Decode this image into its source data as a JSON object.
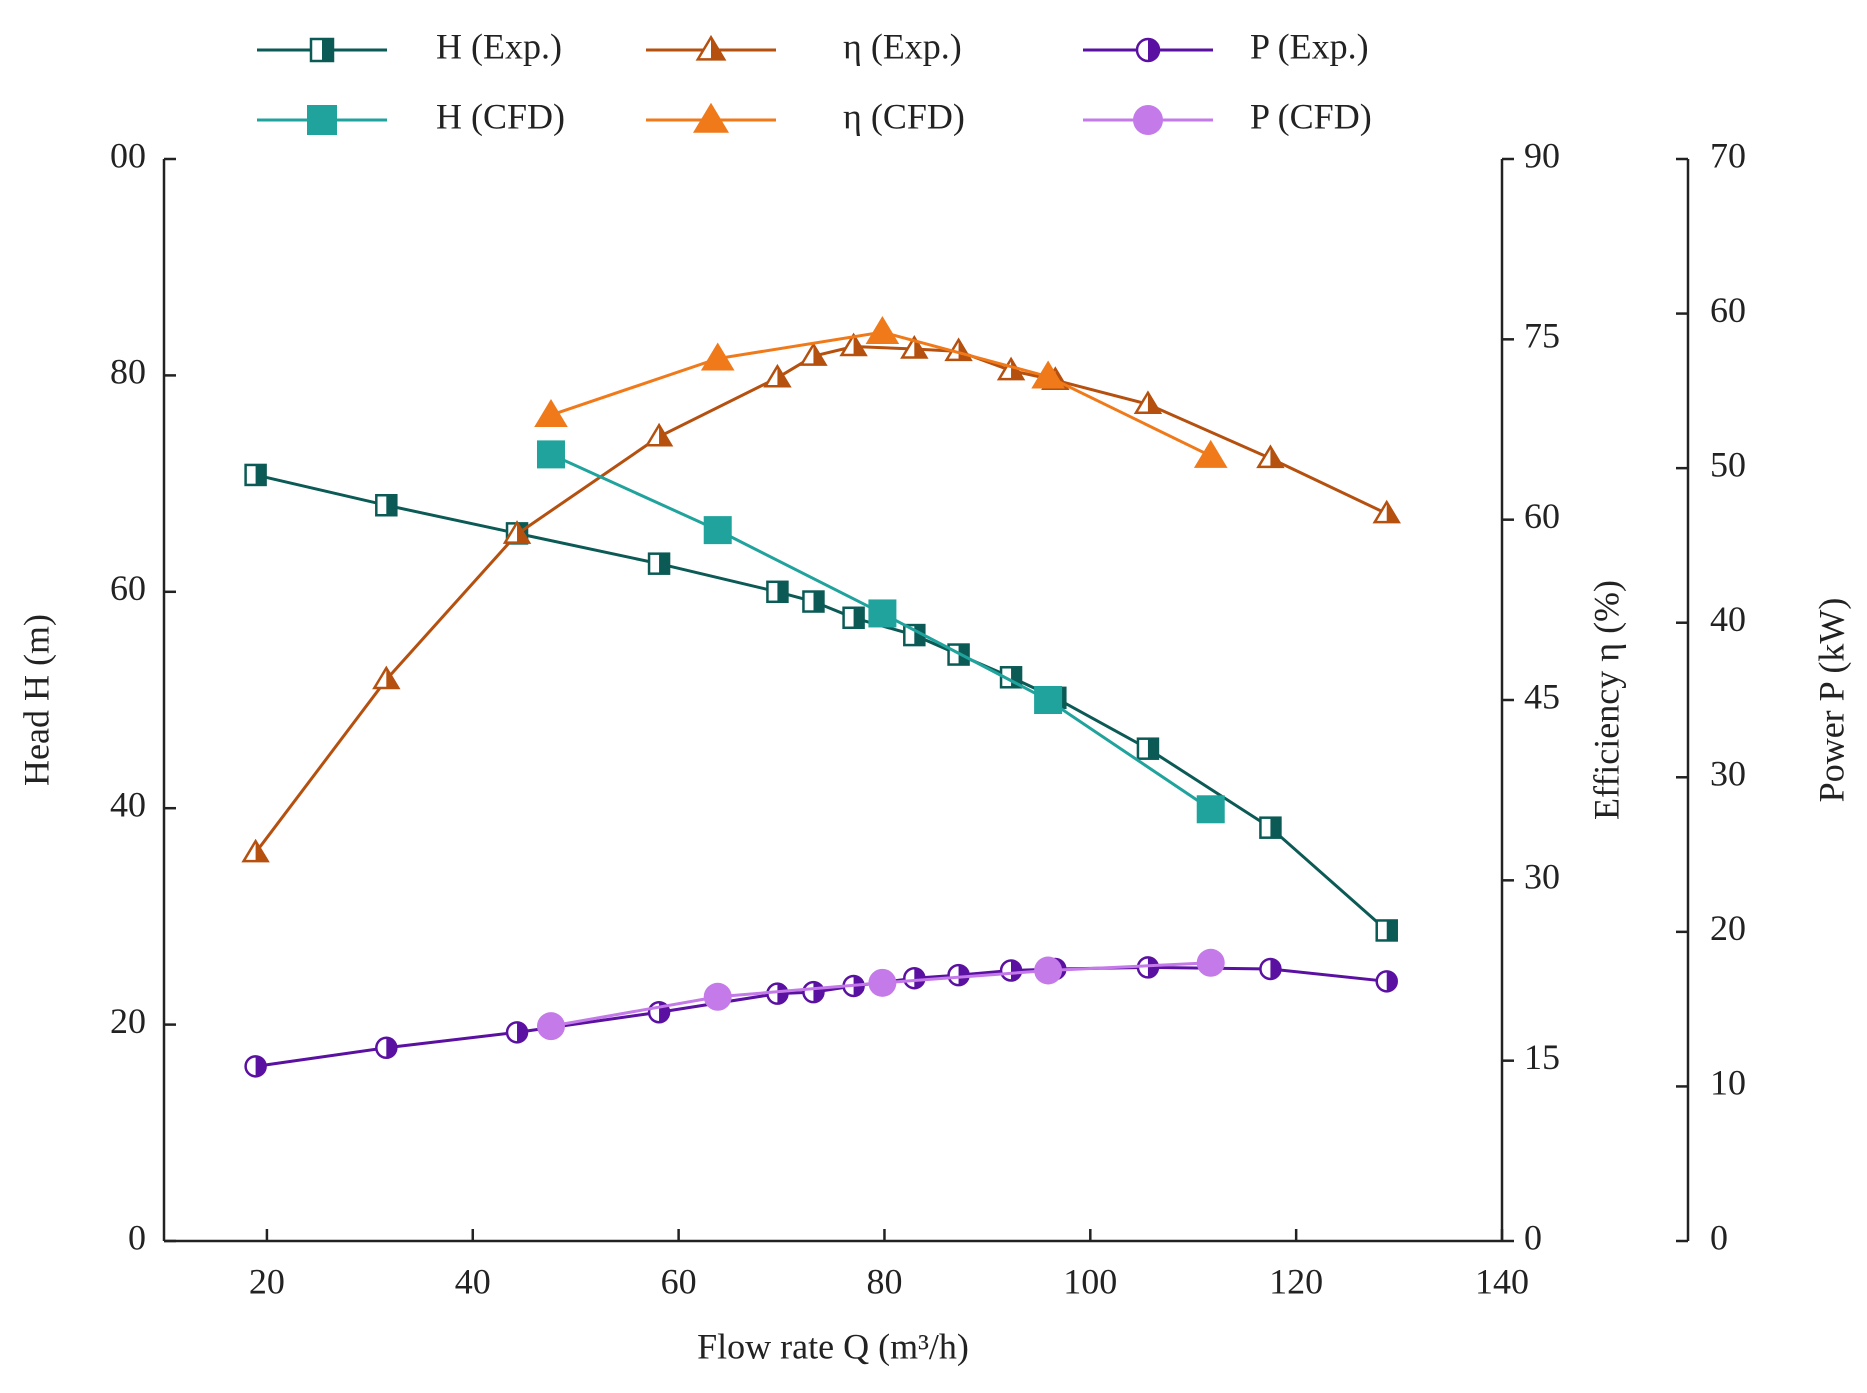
{
  "chart_data": {
    "type": "line",
    "xlabel": "Flow rate Q (m³/h)",
    "ylabel": "Head H (m)",
    "y2label": "Efficiency η (%)",
    "y3label": "Power P (kW)",
    "xlim": [
      10,
      140
    ],
    "xticks": [
      20,
      40,
      60,
      80,
      100,
      120,
      140
    ],
    "ylim": [
      0,
      100
    ],
    "yticks": [
      0,
      20,
      40,
      60,
      80,
      {
        "value": 100,
        "label": "00"
      }
    ],
    "y2lim": [
      0,
      90
    ],
    "y2ticks": [
      0,
      15,
      30,
      45,
      60,
      75,
      90
    ],
    "y3lim": [
      0,
      70
    ],
    "y3ticks": [
      0,
      10,
      20,
      30,
      40,
      50,
      60,
      70
    ],
    "series": [
      {
        "name": "H (Exp.)",
        "color": "#0b5a55",
        "marker": "square-half",
        "axis": "y",
        "x": [
          18.9,
          31.6,
          44.3,
          58.1,
          69.6,
          73.1,
          77.0,
          82.9,
          87.2,
          92.3,
          96.6,
          105.6,
          117.5,
          128.8
        ],
        "values": [
          70.8,
          68.0,
          65.4,
          62.6,
          60.0,
          59.1,
          57.6,
          56.0,
          54.2,
          52.1,
          50.2,
          45.5,
          38.2,
          28.7
        ]
      },
      {
        "name": "η (Exp.)",
        "color": "#b5500f",
        "marker": "triangle-half",
        "axis": "y2",
        "x": [
          18.9,
          31.6,
          44.3,
          58.1,
          69.6,
          73.1,
          77.0,
          82.9,
          87.2,
          92.3,
          96.6,
          105.6,
          117.5,
          128.8
        ],
        "values": [
          32.3,
          46.7,
          58.8,
          66.9,
          71.8,
          73.6,
          74.4,
          74.2,
          74.0,
          72.4,
          71.6,
          69.6,
          65.1,
          60.5
        ]
      },
      {
        "name": "P (Exp.)",
        "color": "#5a10a0",
        "marker": "circle-half",
        "axis": "y3",
        "x": [
          18.9,
          31.6,
          44.3,
          58.1,
          69.6,
          73.1,
          77.0,
          82.9,
          87.2,
          92.3,
          96.6,
          105.6,
          117.5,
          128.8
        ],
        "values": [
          11.3,
          12.5,
          13.5,
          14.8,
          16.0,
          16.1,
          16.5,
          17.0,
          17.2,
          17.5,
          17.6,
          17.7,
          17.6,
          16.8
        ]
      },
      {
        "name": "H (CFD)",
        "color": "#1fa39c",
        "marker": "square",
        "axis": "y",
        "x": [
          47.6,
          63.8,
          79.8,
          95.9,
          111.7
        ],
        "values": [
          72.7,
          65.7,
          58.0,
          50.0,
          39.9
        ]
      },
      {
        "name": "η (CFD)",
        "color": "#f07a1a",
        "marker": "triangle",
        "axis": "y2",
        "x": [
          47.6,
          63.8,
          79.8,
          95.9,
          111.7
        ],
        "values": [
          68.7,
          73.4,
          75.6,
          71.9,
          65.3
        ]
      },
      {
        "name": "P (CFD)",
        "color": "#c47ae8",
        "marker": "circle",
        "axis": "y3",
        "x": [
          47.6,
          63.8,
          79.8,
          95.9,
          111.7
        ],
        "values": [
          13.9,
          15.8,
          16.7,
          17.5,
          18.0
        ]
      }
    ]
  }
}
